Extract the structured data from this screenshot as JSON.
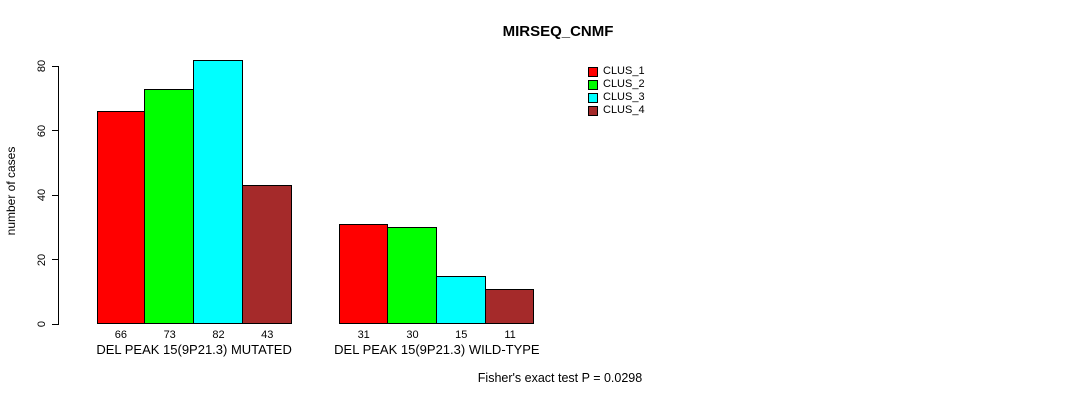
{
  "title": "MIRSEQ_CNMF",
  "footer": "Fisher's exact test P = 0.0298",
  "y_axis": {
    "label": "number of cases",
    "ticks": [
      0,
      20,
      40,
      60,
      80
    ]
  },
  "chart_data": {
    "type": "bar",
    "title": "MIRSEQ_CNMF",
    "xlabel": "",
    "ylabel": "number of cases",
    "ylim": [
      0,
      80
    ],
    "grid": false,
    "legend_position": "top-right",
    "categories": [
      "DEL PEAK 15(9P21.3) MUTATED",
      "DEL PEAK 15(9P21.3) WILD-TYPE"
    ],
    "series": [
      {
        "name": "CLUS_1",
        "color": "#FF0000",
        "values": [
          66,
          31
        ]
      },
      {
        "name": "CLUS_2",
        "color": "#00FF00",
        "values": [
          73,
          30
        ]
      },
      {
        "name": "CLUS_3",
        "color": "#00FFFF",
        "values": [
          82,
          15
        ]
      },
      {
        "name": "CLUS_4",
        "color": "#A52A2A",
        "values": [
          43,
          11
        ]
      }
    ],
    "bar_value_labels": [
      [
        66,
        73,
        82,
        43
      ],
      [
        31,
        30,
        15,
        11
      ]
    ],
    "annotation": "Fisher's exact test P = 0.0298"
  }
}
